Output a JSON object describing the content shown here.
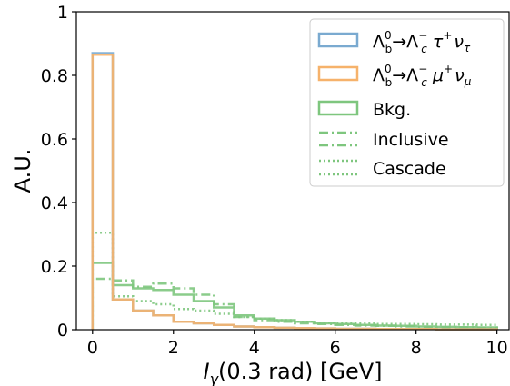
{
  "chart_data": {
    "type": "step-histogram",
    "xlabel": "I",
    "xlabel_sub": "γ",
    "xlabel_rest": "(0.3 rad) [GeV]",
    "ylabel": "A.U.",
    "xlim": [
      -0.4,
      10.3
    ],
    "ylim": [
      0,
      1
    ],
    "xticks": [
      0,
      2,
      4,
      6,
      8,
      10
    ],
    "yticks": [
      0,
      0.2,
      0.4,
      0.6,
      0.8,
      1
    ],
    "ytick_labels": [
      "0",
      "0.2",
      "0.4",
      "0.6",
      "0.8",
      "1"
    ],
    "grid": false,
    "legend_position": "top-right",
    "bin_edges": [
      0,
      0.5,
      1,
      1.5,
      2,
      2.5,
      3,
      3.5,
      4,
      4.5,
      5,
      5.5,
      6,
      6.5,
      7,
      7.5,
      8,
      8.5,
      9,
      9.5,
      10
    ],
    "series": [
      {
        "name": "Λb0→Λc− τ+ ντ",
        "legend_main": "Λ",
        "legend_sup1": "0",
        "legend_sub1": "b",
        "legend_mid": "→Λ",
        "legend_sup2": "−",
        "legend_sub2": "c",
        "legend_lep": " τ",
        "legend_sup3": "+",
        "legend_nu": "ν",
        "legend_sub3": "τ",
        "color": "#7aaad0",
        "style": "solid",
        "values": [
          0.87,
          0.095,
          0.06,
          0.045,
          0.025,
          0.02,
          0.015,
          0.01,
          0.008,
          0.006,
          0.005,
          0.004,
          0.003,
          0.003,
          0.002,
          0.002,
          0.002,
          0.001,
          0.001,
          0.001
        ]
      },
      {
        "name": "Λb0→Λc− μ+ νμ",
        "legend_main": "Λ",
        "legend_sup1": "0",
        "legend_sub1": "b",
        "legend_mid": "→Λ",
        "legend_sup2": "−",
        "legend_sub2": "c",
        "legend_lep": " μ",
        "legend_sup3": "+",
        "legend_nu": "ν",
        "legend_sub3": "μ",
        "color": "#f6b26b",
        "style": "solid",
        "values": [
          0.865,
          0.095,
          0.06,
          0.045,
          0.025,
          0.02,
          0.015,
          0.01,
          0.008,
          0.006,
          0.005,
          0.004,
          0.003,
          0.003,
          0.002,
          0.002,
          0.002,
          0.001,
          0.001,
          0.001
        ]
      },
      {
        "name": "Bkg.",
        "color": "#7ec67e",
        "style": "solid",
        "values": [
          0.21,
          0.14,
          0.13,
          0.125,
          0.11,
          0.09,
          0.07,
          0.045,
          0.035,
          0.03,
          0.025,
          0.02,
          0.018,
          0.015,
          0.013,
          0.012,
          0.01,
          0.009,
          0.008,
          0.007
        ]
      },
      {
        "name": "Inclusive",
        "color": "#7ec67e",
        "style": "dashdot",
        "values": [
          0.16,
          0.155,
          0.135,
          0.145,
          0.13,
          0.11,
          0.08,
          0.04,
          0.03,
          0.025,
          0.02,
          0.018,
          0.015,
          0.013,
          0.012,
          0.01,
          0.009,
          0.008,
          0.007,
          0.006
        ]
      },
      {
        "name": "Cascade",
        "color": "#7ec67e",
        "style": "dotted",
        "values": [
          0.305,
          0.105,
          0.09,
          0.08,
          0.065,
          0.06,
          0.05,
          0.04,
          0.035,
          0.03,
          0.025,
          0.022,
          0.02,
          0.02,
          0.018,
          0.018,
          0.017,
          0.016,
          0.016,
          0.015
        ]
      }
    ]
  }
}
